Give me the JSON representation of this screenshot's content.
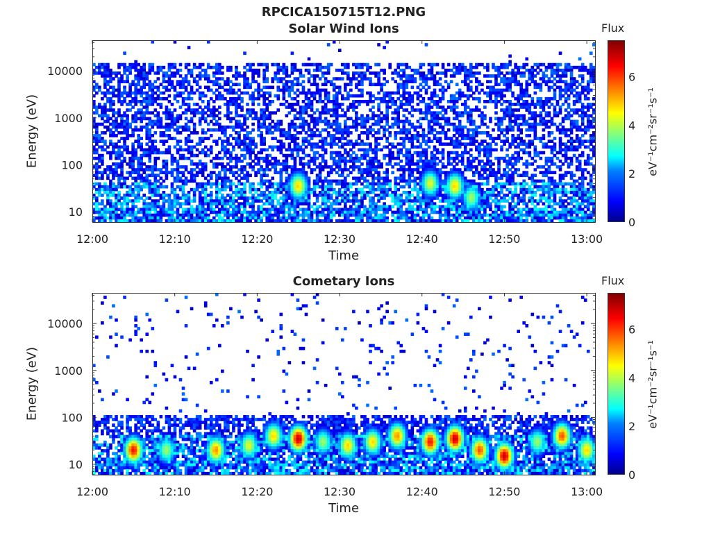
{
  "main_title": "RPCICA150715T12.PNG",
  "colormap": [
    "#00008f",
    "#0000ff",
    "#0080ff",
    "#00ffff",
    "#80ff80",
    "#ffff00",
    "#ff8000",
    "#ff0000",
    "#800000"
  ],
  "chart_data": [
    {
      "type": "heatmap",
      "title": "Solar Wind Ions",
      "xlabel": "Time",
      "ylabel": "Energy (eV)",
      "x_ticks": [
        "12:00",
        "12:10",
        "12:20",
        "12:30",
        "12:40",
        "12:50",
        "13:00"
      ],
      "xlim": [
        "12:00",
        "13:01"
      ],
      "y_scale": "log",
      "y_ticks": [
        10,
        100,
        1000,
        10000
      ],
      "y_tick_labels": [
        "10",
        "100",
        "1000",
        "10000"
      ],
      "ylim": [
        6,
        45000
      ],
      "colorbar": {
        "title": "Flux",
        "label": "eV⁻¹cm⁻²sr⁻¹s⁻¹",
        "ticks": [
          "0",
          "2",
          "4",
          "6"
        ],
        "range": [
          0,
          7.5
        ]
      },
      "description_features": [
        {
          "time": "12:25",
          "energy_eV": 35,
          "flux": 5
        },
        {
          "time": "12:44",
          "energy_eV": 35,
          "flux": 5
        },
        {
          "time": "12:41",
          "energy_eV": 40,
          "flux": 4.5
        },
        {
          "time": "12:46",
          "energy_eV": 20,
          "flux": 4
        }
      ],
      "background_upper_energy_eV": 15000,
      "seed": 7
    },
    {
      "type": "heatmap",
      "title": "Cometary Ions",
      "xlabel": "Time",
      "ylabel": "Energy (eV)",
      "x_ticks": [
        "12:00",
        "12:10",
        "12:20",
        "12:30",
        "12:40",
        "12:50",
        "13:00"
      ],
      "xlim": [
        "12:00",
        "13:01"
      ],
      "y_scale": "log",
      "y_ticks": [
        10,
        100,
        1000,
        10000
      ],
      "y_tick_labels": [
        "10",
        "100",
        "1000",
        "10000"
      ],
      "ylim": [
        6,
        45000
      ],
      "colorbar": {
        "title": "Flux",
        "label": "eV⁻¹cm⁻²sr⁻¹s⁻¹",
        "ticks": [
          "0",
          "2",
          "4",
          "6"
        ],
        "range": [
          0,
          7.5
        ]
      },
      "description_features": [
        {
          "time": "12:05",
          "energy_eV": 20,
          "flux": 6.5
        },
        {
          "time": "12:09",
          "energy_eV": 20,
          "flux": 4
        },
        {
          "time": "12:15",
          "energy_eV": 20,
          "flux": 5.5
        },
        {
          "time": "12:19",
          "energy_eV": 25,
          "flux": 4.5
        },
        {
          "time": "12:22",
          "energy_eV": 40,
          "flux": 5
        },
        {
          "time": "12:25",
          "energy_eV": 35,
          "flux": 7
        },
        {
          "time": "12:28",
          "energy_eV": 30,
          "flux": 4
        },
        {
          "time": "12:31",
          "energy_eV": 25,
          "flux": 5
        },
        {
          "time": "12:34",
          "energy_eV": 30,
          "flux": 5
        },
        {
          "time": "12:37",
          "energy_eV": 40,
          "flux": 5.5
        },
        {
          "time": "12:41",
          "energy_eV": 30,
          "flux": 6.5
        },
        {
          "time": "12:44",
          "energy_eV": 35,
          "flux": 7
        },
        {
          "time": "12:47",
          "energy_eV": 20,
          "flux": 6
        },
        {
          "time": "12:50",
          "energy_eV": 15,
          "flux": 7
        },
        {
          "time": "12:54",
          "energy_eV": 30,
          "flux": 4
        },
        {
          "time": "12:57",
          "energy_eV": 40,
          "flux": 6
        },
        {
          "time": "13:00",
          "energy_eV": 20,
          "flux": 5
        }
      ],
      "background_upper_energy_eV": 120,
      "seed": 13
    }
  ]
}
